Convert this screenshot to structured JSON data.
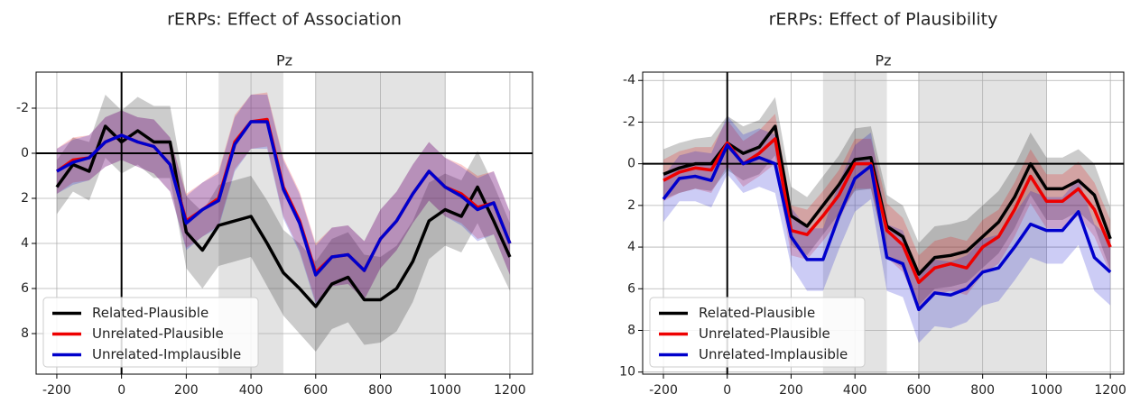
{
  "chart_data": [
    {
      "type": "line",
      "title": "rERPs: Effect of Association",
      "subtitle": "Pz",
      "x": [
        -200,
        -150,
        -100,
        -50,
        0,
        50,
        100,
        150,
        200,
        250,
        300,
        350,
        400,
        450,
        500,
        550,
        600,
        650,
        700,
        750,
        800,
        850,
        900,
        950,
        1000,
        1050,
        1100,
        1150,
        1200
      ],
      "series": [
        {
          "name": "Related-Plausible",
          "color": "#000000",
          "values": [
            1.5,
            0.5,
            0.8,
            -1.2,
            -0.5,
            -1.0,
            -0.5,
            -0.5,
            3.5,
            4.3,
            3.2,
            3.0,
            2.8,
            4.0,
            5.3,
            6.0,
            6.8,
            5.8,
            5.5,
            6.5,
            6.5,
            6.0,
            4.8,
            3.0,
            2.5,
            2.8,
            1.5,
            3.0,
            4.6
          ],
          "error": [
            1.2,
            1.2,
            1.3,
            1.4,
            1.4,
            1.5,
            1.6,
            1.6,
            1.6,
            1.7,
            1.8,
            1.8,
            1.8,
            1.9,
            1.9,
            2.0,
            2.0,
            2.0,
            2.0,
            2.0,
            1.9,
            1.9,
            1.8,
            1.7,
            1.6,
            1.6,
            1.6,
            1.6,
            1.5
          ]
        },
        {
          "name": "Unrelated-Plausible",
          "color": "#ee0000",
          "values": [
            0.8,
            0.3,
            0.2,
            -0.5,
            -0.8,
            -0.5,
            -0.3,
            0.5,
            3.0,
            2.5,
            2.0,
            -0.5,
            -1.4,
            -1.5,
            1.5,
            3.0,
            5.3,
            4.6,
            4.5,
            5.2,
            3.8,
            3.0,
            1.8,
            0.8,
            1.5,
            1.8,
            2.4,
            2.2,
            4.0
          ],
          "error": [
            1.0,
            1.0,
            1.0,
            1.1,
            1.1,
            1.1,
            1.2,
            1.2,
            1.2,
            1.2,
            1.2,
            1.2,
            1.2,
            1.2,
            1.3,
            1.3,
            1.3,
            1.3,
            1.3,
            1.3,
            1.3,
            1.3,
            1.3,
            1.3,
            1.3,
            1.3,
            1.4,
            1.4,
            1.4
          ]
        },
        {
          "name": "Unrelated-Implausible",
          "color": "#0000cc",
          "values": [
            0.8,
            0.4,
            0.2,
            -0.5,
            -0.8,
            -0.5,
            -0.3,
            0.5,
            3.1,
            2.5,
            2.1,
            -0.4,
            -1.4,
            -1.4,
            1.6,
            3.1,
            5.4,
            4.6,
            4.5,
            5.2,
            3.8,
            3.0,
            1.8,
            0.8,
            1.5,
            1.9,
            2.5,
            2.2,
            4.0
          ],
          "error": [
            1.0,
            1.0,
            1.0,
            1.1,
            1.1,
            1.1,
            1.2,
            1.2,
            1.2,
            1.2,
            1.2,
            1.2,
            1.2,
            1.2,
            1.3,
            1.3,
            1.3,
            1.3,
            1.3,
            1.3,
            1.3,
            1.3,
            1.3,
            1.3,
            1.3,
            1.3,
            1.4,
            1.4,
            1.4
          ]
        }
      ],
      "xlim": [
        -264,
        1270
      ],
      "xticks": [
        -200,
        0,
        200,
        400,
        600,
        800,
        1000,
        1200
      ],
      "ylim": [
        9.8,
        -3.6
      ],
      "yticks": [
        -2,
        0,
        2,
        4,
        6,
        8
      ],
      "shaded_regions": [
        [
          300,
          500
        ],
        [
          600,
          1000
        ]
      ],
      "hlines": [
        0
      ],
      "vlines": [
        0
      ],
      "grid": true,
      "legend": "lower left"
    },
    {
      "type": "line",
      "title": "rERPs: Effect of Plausibility",
      "subtitle": "Pz",
      "x": [
        -200,
        -150,
        -100,
        -50,
        0,
        50,
        100,
        150,
        200,
        250,
        300,
        350,
        400,
        450,
        500,
        550,
        600,
        650,
        700,
        750,
        800,
        850,
        900,
        950,
        1000,
        1050,
        1100,
        1150,
        1200
      ],
      "series": [
        {
          "name": "Related-Plausible",
          "color": "#000000",
          "values": [
            0.5,
            0.2,
            0.0,
            0.0,
            -1.0,
            -0.5,
            -0.8,
            -1.8,
            2.5,
            3.0,
            2.0,
            1.0,
            -0.2,
            -0.3,
            3.0,
            3.5,
            5.3,
            4.5,
            4.4,
            4.2,
            3.5,
            2.8,
            1.6,
            0.0,
            1.2,
            1.2,
            0.8,
            1.5,
            3.6
          ],
          "error": [
            1.2,
            1.2,
            1.2,
            1.3,
            1.3,
            1.3,
            1.3,
            1.4,
            1.4,
            1.4,
            1.4,
            1.4,
            1.5,
            1.5,
            1.5,
            1.5,
            1.5,
            1.5,
            1.5,
            1.5,
            1.5,
            1.5,
            1.5,
            1.5,
            1.5,
            1.5,
            1.5,
            1.5,
            1.5
          ]
        },
        {
          "name": "Unrelated-Plausible",
          "color": "#ee0000",
          "values": [
            0.8,
            0.4,
            0.2,
            0.3,
            -1.0,
            0.0,
            -0.5,
            -1.2,
            3.2,
            3.4,
            2.5,
            1.5,
            0.0,
            0.0,
            3.2,
            3.9,
            5.7,
            5.0,
            4.8,
            5.0,
            4.0,
            3.5,
            2.2,
            0.6,
            1.8,
            1.8,
            1.2,
            2.2,
            4.0
          ],
          "error": [
            1.0,
            1.0,
            1.0,
            1.1,
            1.1,
            1.1,
            1.1,
            1.2,
            1.2,
            1.2,
            1.2,
            1.2,
            1.2,
            1.2,
            1.3,
            1.3,
            1.3,
            1.3,
            1.3,
            1.3,
            1.3,
            1.3,
            1.3,
            1.3,
            1.3,
            1.3,
            1.3,
            1.3,
            1.3
          ]
        },
        {
          "name": "Unrelated-Implausible",
          "color": "#0000cc",
          "values": [
            1.7,
            0.7,
            0.6,
            0.8,
            -0.9,
            0.0,
            -0.3,
            0.0,
            3.5,
            4.6,
            4.6,
            2.5,
            0.7,
            0.1,
            4.5,
            4.8,
            7.0,
            6.2,
            6.3,
            6.0,
            5.2,
            5.0,
            4.0,
            2.9,
            3.2,
            3.2,
            2.3,
            4.5,
            5.2
          ],
          "error": [
            1.1,
            1.1,
            1.2,
            1.3,
            1.4,
            1.4,
            1.4,
            1.4,
            1.4,
            1.5,
            1.5,
            1.6,
            1.6,
            1.6,
            1.6,
            1.6,
            1.6,
            1.6,
            1.6,
            1.6,
            1.6,
            1.6,
            1.6,
            1.6,
            1.6,
            1.6,
            1.6,
            1.6,
            1.6
          ]
        }
      ],
      "xlim": [
        -265,
        1242
      ],
      "xticks": [
        -200,
        0,
        200,
        400,
        600,
        800,
        1000,
        1200
      ],
      "ylim": [
        10.1,
        -4.4
      ],
      "yticks": [
        -4,
        -2,
        0,
        2,
        4,
        6,
        8,
        10
      ],
      "shaded_regions": [
        [
          300,
          500
        ],
        [
          600,
          1000
        ]
      ],
      "hlines": [
        0
      ],
      "vlines": [
        0
      ],
      "grid": true,
      "legend": "lower left"
    }
  ]
}
